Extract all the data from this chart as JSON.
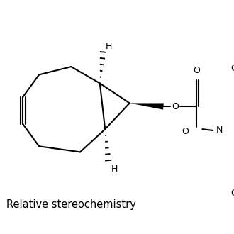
{
  "subtitle": "Relative stereochemistry",
  "background_color": "#ffffff",
  "line_color": "#000000",
  "line_width": 1.5,
  "font_size_label": 10.5,
  "font_size_atom": 9,
  "fig_width": 3.3,
  "fig_height": 3.3,
  "dpi": 100,
  "xlim": [
    0,
    330
  ],
  "ylim": [
    0,
    330
  ]
}
